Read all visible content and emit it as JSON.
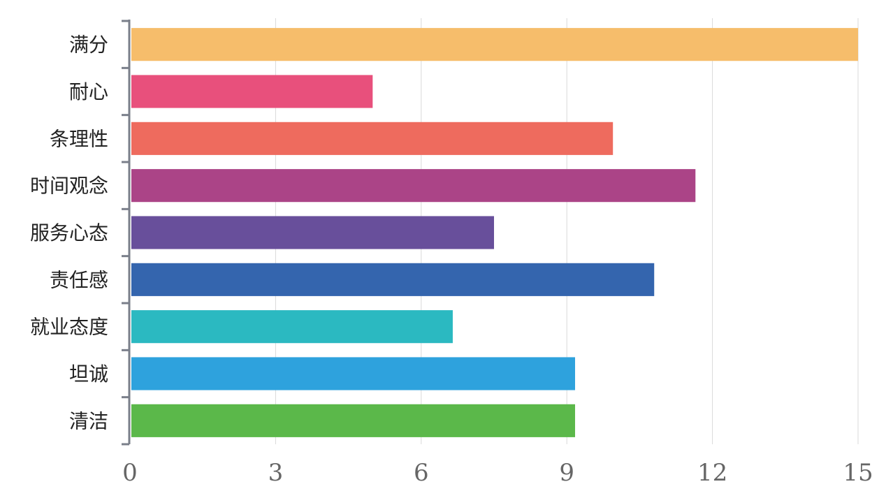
{
  "chart_data": {
    "type": "bar",
    "orientation": "horizontal",
    "title": "",
    "xlabel": "",
    "ylabel": "",
    "xlim": [
      0,
      15
    ],
    "x_ticks": [
      0,
      3,
      6,
      9,
      12,
      15
    ],
    "grid": "vertical",
    "categories": [
      "满分",
      "耐心",
      "条理性",
      "时间观念",
      "服务心态",
      "责任感",
      "就业态度",
      "坦诚",
      "清洁"
    ],
    "values": [
      15,
      5,
      9.95,
      11.65,
      7.5,
      10.8,
      6.65,
      9.17,
      9.17
    ],
    "colors": [
      "#f6bd6b",
      "#e8507c",
      "#ee6b5e",
      "#ab4487",
      "#684f9b",
      "#3465ae",
      "#2bb9c1",
      "#2ea2dd",
      "#5bb84a"
    ]
  }
}
